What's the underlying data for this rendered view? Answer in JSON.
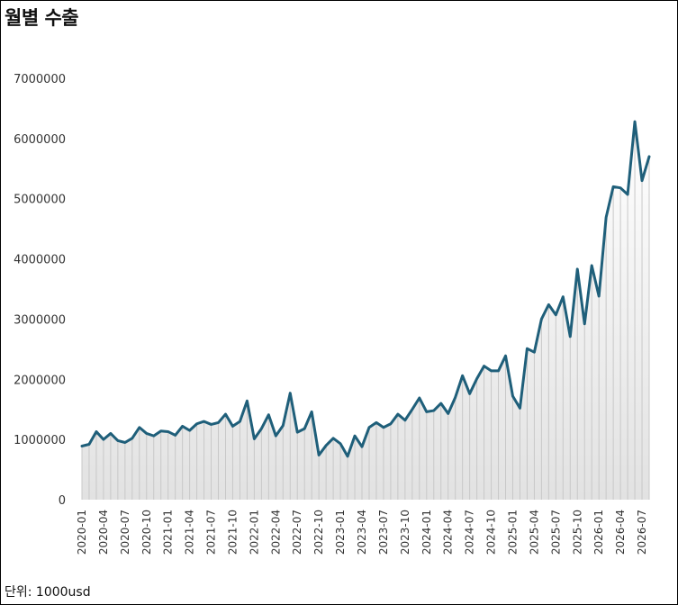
{
  "title": "월별 수출",
  "unit_note": "단위: 1000usd",
  "colors": {
    "line": "#1f5f7a",
    "area_top": "#ffffff",
    "area_bottom": "#e2e2e2",
    "stem": "#c8c8c8",
    "border": "#000000"
  },
  "chart_data": {
    "type": "area",
    "title": "월별 수출",
    "xlabel": "",
    "ylabel": "",
    "ylim": [
      0,
      7000000
    ],
    "y_ticks": [
      0,
      1000000,
      2000000,
      3000000,
      4000000,
      5000000,
      6000000,
      7000000
    ],
    "y_tick_labels": [
      "0",
      "1000000",
      "2000000",
      "3000000",
      "4000000",
      "5000000",
      "6000000",
      "7000000"
    ],
    "grid": false,
    "x_tick_labels": [
      "2020-01",
      "2020-04",
      "2020-07",
      "2020-10",
      "2021-01",
      "2021-04",
      "2021-07",
      "2021-10",
      "2022-01",
      "2022-04",
      "2022-07",
      "2022-10",
      "2023-01",
      "2023-04",
      "2023-07",
      "2023-10",
      "2024-01",
      "2024-04",
      "2024-07",
      "2024-10",
      "2025-01",
      "2025-04",
      "2025-07",
      "2025-10",
      "2026-01",
      "2026-04",
      "2026-07"
    ],
    "x": [
      "2020-01",
      "2020-02",
      "2020-03",
      "2020-04",
      "2020-05",
      "2020-06",
      "2020-07",
      "2020-08",
      "2020-09",
      "2020-10",
      "2020-11",
      "2020-12",
      "2021-01",
      "2021-02",
      "2021-03",
      "2021-04",
      "2021-05",
      "2021-06",
      "2021-07",
      "2021-08",
      "2021-09",
      "2021-10",
      "2021-11",
      "2021-12",
      "2022-01",
      "2022-02",
      "2022-03",
      "2022-04",
      "2022-05",
      "2022-06",
      "2022-07",
      "2022-08",
      "2022-09",
      "2022-10",
      "2022-11",
      "2022-12",
      "2023-01",
      "2023-02",
      "2023-03",
      "2023-04",
      "2023-05",
      "2023-06",
      "2023-07",
      "2023-08",
      "2023-09",
      "2023-10",
      "2023-11",
      "2023-12",
      "2024-01",
      "2024-02",
      "2024-03",
      "2024-04",
      "2024-05",
      "2024-06",
      "2024-07",
      "2024-08",
      "2024-09",
      "2024-10",
      "2024-11",
      "2024-12",
      "2025-01",
      "2025-02",
      "2025-03",
      "2025-04",
      "2025-05",
      "2025-06",
      "2025-07",
      "2025-08",
      "2025-09",
      "2025-10",
      "2025-11",
      "2025-12",
      "2026-01",
      "2026-02",
      "2026-03",
      "2026-04",
      "2026-05",
      "2026-06",
      "2026-07",
      "2026-08"
    ],
    "values": [
      890000,
      920000,
      1130000,
      1000000,
      1100000,
      980000,
      950000,
      1020000,
      1200000,
      1100000,
      1060000,
      1140000,
      1130000,
      1070000,
      1220000,
      1150000,
      1260000,
      1300000,
      1250000,
      1280000,
      1420000,
      1220000,
      1300000,
      1640000,
      1010000,
      1180000,
      1410000,
      1060000,
      1230000,
      1770000,
      1120000,
      1180000,
      1460000,
      740000,
      900000,
      1020000,
      930000,
      720000,
      1060000,
      880000,
      1200000,
      1280000,
      1200000,
      1260000,
      1420000,
      1320000,
      1500000,
      1690000,
      1460000,
      1480000,
      1600000,
      1430000,
      1700000,
      2060000,
      1760000,
      2010000,
      2220000,
      2140000,
      2140000,
      2390000,
      1720000,
      1520000,
      2510000,
      2450000,
      3000000,
      3240000,
      3070000,
      3370000,
      2710000,
      3830000,
      2920000,
      3890000,
      3380000,
      4690000,
      5200000,
      5180000,
      5070000,
      6280000,
      5300000,
      5700000
    ]
  }
}
